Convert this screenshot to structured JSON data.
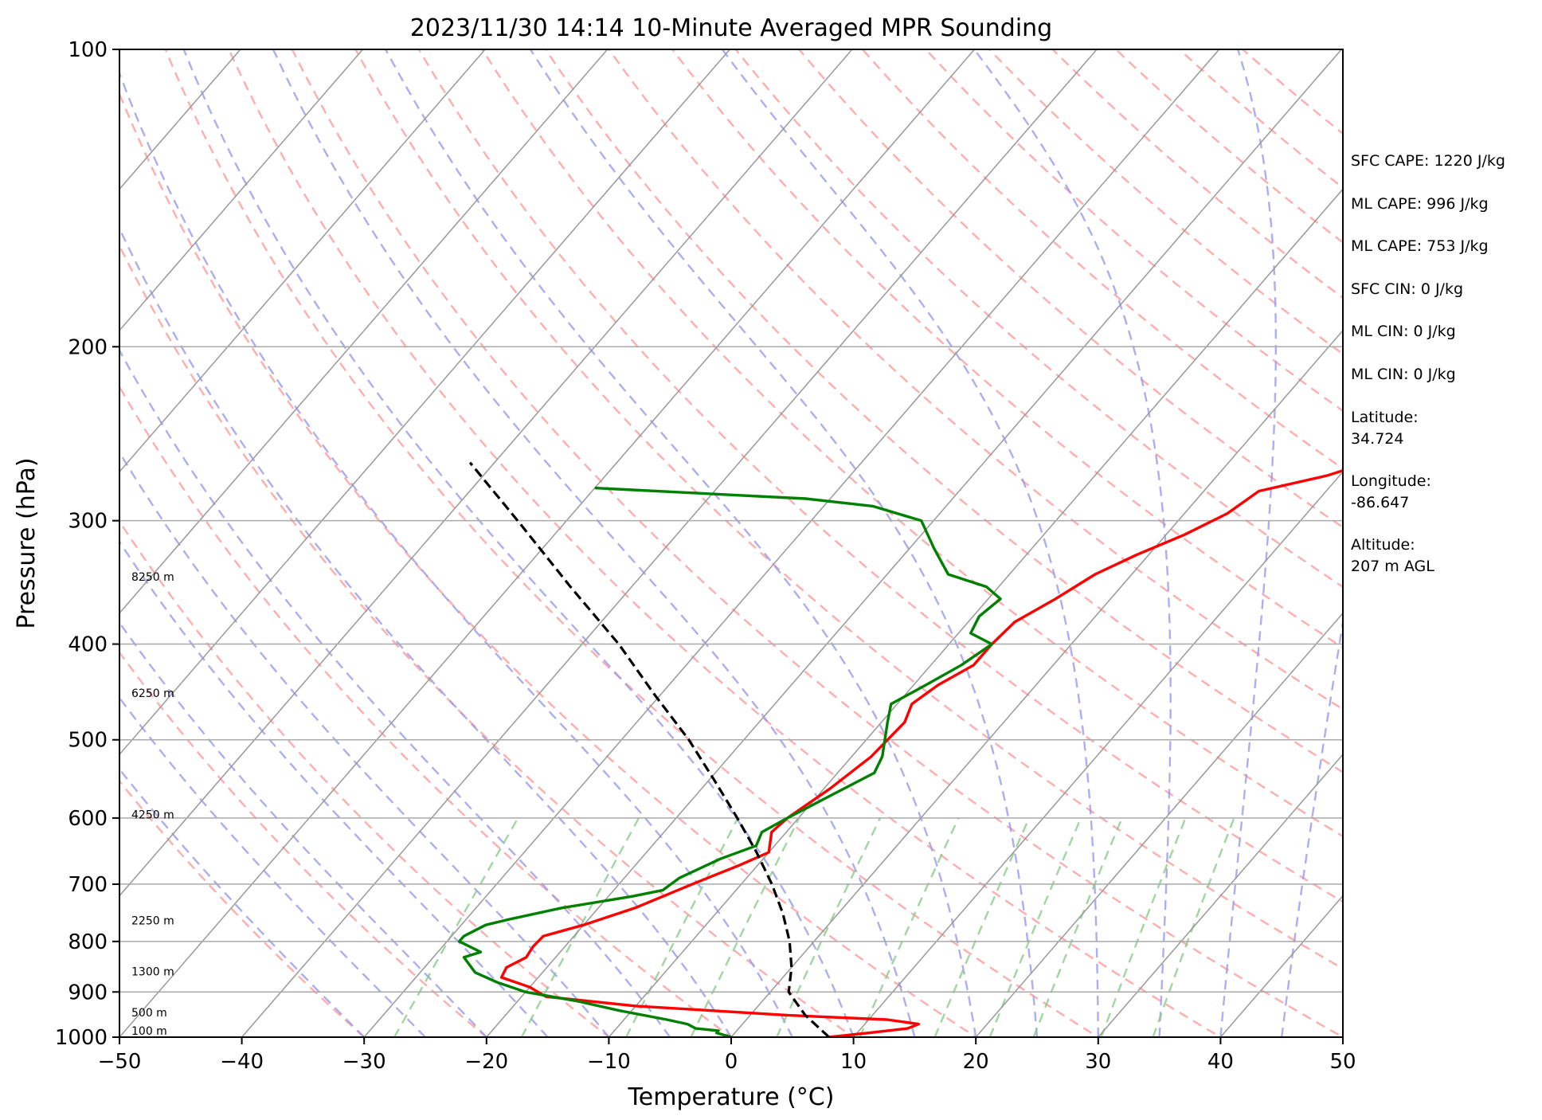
{
  "chart_data": {
    "type": "line",
    "title": "2023/11/30 14:14 10-Minute Averaged MPR Sounding",
    "xlabel": "Temperature (°C)",
    "ylabel": "Pressure (hPa)",
    "x_ticks": [
      -50,
      -40,
      -30,
      -20,
      -10,
      0,
      10,
      20,
      30,
      40,
      50
    ],
    "y_ticks": [
      100,
      200,
      300,
      400,
      500,
      600,
      700,
      800,
      900,
      1000
    ],
    "xlim": [
      -50,
      50
    ],
    "ylim": [
      1000,
      100
    ],
    "y_scale": "log",
    "skew": "skew-T",
    "grid": true,
    "series": [
      {
        "color": "#ff0000",
        "points": [
          [
            1000,
            8.0
          ],
          [
            990,
            11.0
          ],
          [
            980,
            13.8
          ],
          [
            970,
            14.4
          ],
          [
            960,
            11.5
          ],
          [
            950,
            3.0
          ],
          [
            930,
            -10.0
          ],
          [
            910,
            -18.0
          ],
          [
            890,
            -20.0
          ],
          [
            870,
            -23.0
          ],
          [
            850,
            -23.3
          ],
          [
            830,
            -22.4
          ],
          [
            810,
            -22.6
          ],
          [
            790,
            -22.5
          ],
          [
            770,
            -20.0
          ],
          [
            740,
            -17.0
          ],
          [
            700,
            -14.0
          ],
          [
            670,
            -11.5
          ],
          [
            650,
            -10.0
          ],
          [
            620,
            -11.2
          ],
          [
            600,
            -10.9
          ],
          [
            560,
            -9.5
          ],
          [
            520,
            -8.4
          ],
          [
            480,
            -8.1
          ],
          [
            460,
            -8.8
          ],
          [
            440,
            -8.0
          ],
          [
            420,
            -6.5
          ],
          [
            400,
            -6.5
          ],
          [
            380,
            -6.2
          ],
          [
            360,
            -4.5
          ],
          [
            340,
            -3.0
          ],
          [
            325,
            -1.0
          ],
          [
            310,
            1.5
          ],
          [
            295,
            3.5
          ],
          [
            280,
            4.5
          ],
          [
            270,
            9.0
          ],
          [
            260,
            12.0
          ]
        ]
      },
      {
        "color": "#008000",
        "points": [
          [
            1000,
            0.0
          ],
          [
            990,
            -1.5
          ],
          [
            985,
            -1.5
          ],
          [
            980,
            -3.5
          ],
          [
            970,
            -4.5
          ],
          [
            960,
            -6.5
          ],
          [
            940,
            -11.0
          ],
          [
            920,
            -15.0
          ],
          [
            900,
            -20.0
          ],
          [
            880,
            -23.0
          ],
          [
            860,
            -25.5
          ],
          [
            845,
            -26.5
          ],
          [
            830,
            -27.5
          ],
          [
            820,
            -26.5
          ],
          [
            800,
            -29.0
          ],
          [
            790,
            -29.0
          ],
          [
            780,
            -28.5
          ],
          [
            770,
            -28.0
          ],
          [
            760,
            -26.5
          ],
          [
            740,
            -23.0
          ],
          [
            720,
            -18.0
          ],
          [
            710,
            -16.0
          ],
          [
            690,
            -15.5
          ],
          [
            660,
            -13.5
          ],
          [
            640,
            -11.5
          ],
          [
            620,
            -12.0
          ],
          [
            600,
            -10.9
          ],
          [
            570,
            -9.0
          ],
          [
            540,
            -7.0
          ],
          [
            520,
            -7.5
          ],
          [
            480,
            -9.5
          ],
          [
            460,
            -10.5
          ],
          [
            440,
            -9.0
          ],
          [
            420,
            -7.5
          ],
          [
            400,
            -6.5
          ],
          [
            390,
            -9.0
          ],
          [
            375,
            -9.5
          ],
          [
            360,
            -9.0
          ],
          [
            350,
            -11.0
          ],
          [
            340,
            -15.0
          ],
          [
            320,
            -18.0
          ],
          [
            300,
            -21.0
          ],
          [
            290,
            -26.0
          ],
          [
            285,
            -32.0
          ],
          [
            278,
            -50.0
          ]
        ]
      },
      {
        "color": "#000000",
        "dashed": true,
        "points": [
          [
            1000,
            8.0
          ],
          [
            950,
            4.5
          ],
          [
            900,
            1.5
          ],
          [
            850,
            0.0
          ],
          [
            800,
            -2.0
          ],
          [
            750,
            -4.5
          ],
          [
            700,
            -7.5
          ],
          [
            650,
            -11.0
          ],
          [
            600,
            -15.0
          ],
          [
            550,
            -19.5
          ],
          [
            500,
            -24.5
          ],
          [
            450,
            -30.5
          ],
          [
            400,
            -37.0
          ],
          [
            350,
            -45.0
          ],
          [
            300,
            -54.0
          ],
          [
            262,
            -62.0
          ]
        ]
      }
    ],
    "height_labels": [
      {
        "label": "100 m",
        "p": 1000
      },
      {
        "label": "500 m",
        "p": 958
      },
      {
        "label": "1300 m",
        "p": 871
      },
      {
        "label": "2250 m",
        "p": 773
      },
      {
        "label": "4250 m",
        "p": 604
      },
      {
        "label": "6250 m",
        "p": 455
      },
      {
        "label": "8250 m",
        "p": 347
      }
    ],
    "info_lines": [
      "SFC CAPE: 1220 J/kg",
      "ML CAPE: 996 J/kg",
      "ML CAPE: 753 J/kg",
      "SFC CIN: 0 J/kg",
      "ML CIN: 0 J/kg",
      "ML CIN: 0 J/kg",
      "Latitude:",
      "34.724",
      "Longitude:",
      "-86.647",
      "Altitude:",
      "207 m AGL"
    ],
    "colors": {
      "dry_adiabats": "#ff9999",
      "moist_adiabats": "#9999ee",
      "mixing_ratio": "#88cc88",
      "isotherms": "#999999",
      "isobars": "#aaaaaa"
    }
  }
}
